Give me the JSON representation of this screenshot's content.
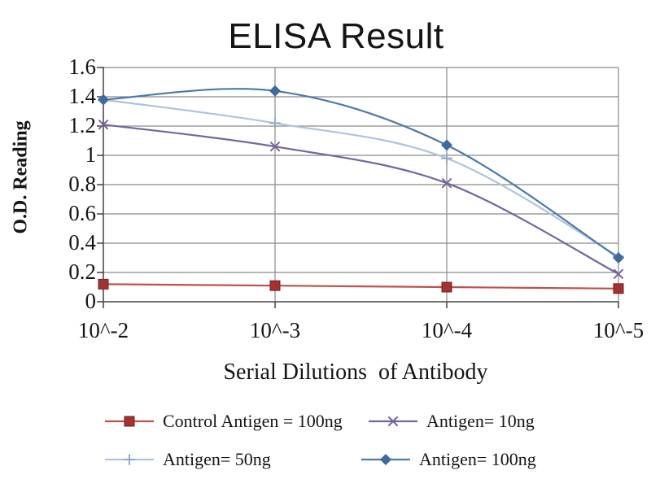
{
  "chart_data": {
    "type": "line",
    "title": "ELISA Result",
    "xlabel": "Serial Dilutions  of Antibody",
    "ylabel": "O.D. Reading",
    "categories": [
      "10^-2",
      "10^-3",
      "10^-4",
      "10^-5"
    ],
    "series": [
      {
        "name": "Control Antigen = 100ng",
        "values": [
          0.12,
          0.11,
          0.1,
          0.09
        ],
        "color": "#C0504D",
        "marker_color": "#A33230",
        "marker": "square"
      },
      {
        "name": "Antigen= 10ng",
        "values": [
          1.21,
          1.06,
          0.81,
          0.19
        ],
        "color": "#76659B",
        "marker_color": "#76659B",
        "marker": "x"
      },
      {
        "name": "Antigen= 50ng",
        "values": [
          1.38,
          1.22,
          0.98,
          0.31
        ],
        "color": "#AFC3DC",
        "marker_color": "#93ABC9",
        "marker": "plus"
      },
      {
        "name": "Antigen= 100ng",
        "values": [
          1.38,
          1.44,
          1.07,
          0.3
        ],
        "color": "#4E79A9",
        "marker_color": "#3D6B9E",
        "marker": "diamond"
      }
    ],
    "ylim": [
      0,
      1.6
    ],
    "y_tick_labels": [
      "0",
      "0.2",
      "0.4",
      "0.6",
      "0.8",
      "1",
      "1.2",
      "1.4",
      "1.6"
    ],
    "grid": true,
    "smooth": true,
    "legend_position": "bottom"
  },
  "colors": {
    "background": "#FFFFFF",
    "gridline": "#8A8A8A",
    "axis": "#4D4D4D",
    "text": "#151515"
  }
}
